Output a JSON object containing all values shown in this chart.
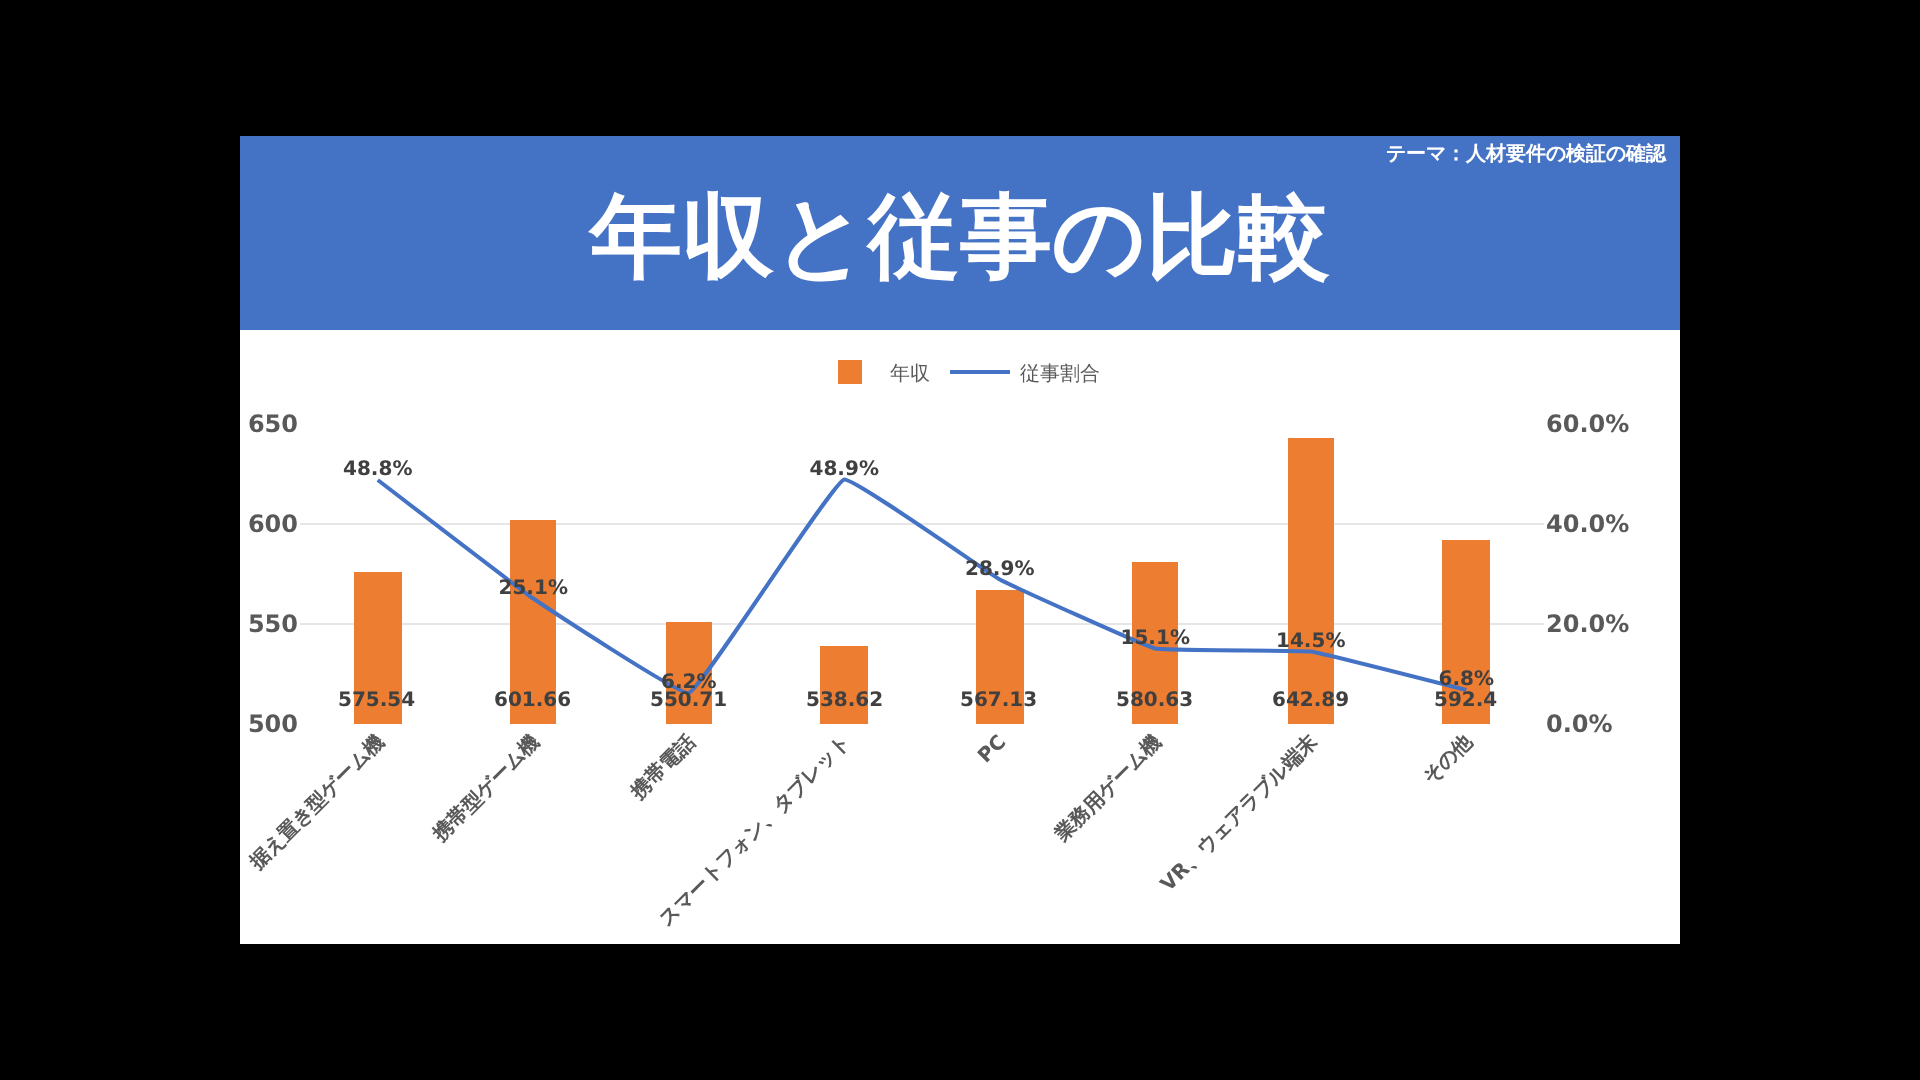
{
  "chart_data": {
    "type": "bar",
    "title": "年収と従事の比較",
    "annotations": [
      "テーマ：人材要件の検証の確認"
    ],
    "categories": [
      "据え置き型ゲーム機",
      "携帯型ゲーム機",
      "携帯電話",
      "スマートフォン、タブレット",
      "PC",
      "業務用ゲーム機",
      "VR、ウェアラブル端末",
      "その他"
    ],
    "series": [
      {
        "name": "年収",
        "color": "#ed7d31",
        "values": [
          575.54,
          601.66,
          550.71,
          538.62,
          567.13,
          580.63,
          642.89,
          592.4
        ],
        "value_labels": [
          "575.54",
          "601.66",
          "550.71",
          "538.62",
          "567.13",
          "580.63",
          "642.89",
          "592.4"
        ]
      },
      {
        "name": "従事割合",
        "type": "line",
        "axis": "y2",
        "color": "#4472c4",
        "values": [
          48.8,
          25.1,
          6.2,
          48.9,
          28.9,
          15.1,
          14.5,
          6.8
        ],
        "value_labels": [
          "48.8%",
          "25.1%",
          "6.2%",
          "48.9%",
          "28.9%",
          "15.1%",
          "14.5%",
          "6.8%"
        ]
      }
    ],
    "ylim": [
      500,
      650
    ],
    "yticks": [
      500,
      550,
      600,
      650
    ],
    "y2lim": [
      0,
      60
    ],
    "y2ticks": [
      {
        "value": 0,
        "label": "0.0%"
      },
      {
        "value": 20,
        "label": "20.0%"
      },
      {
        "value": 40,
        "label": "40.0%"
      },
      {
        "value": 60,
        "label": "60.0%"
      }
    ],
    "grid": "y",
    "legend": "top"
  }
}
